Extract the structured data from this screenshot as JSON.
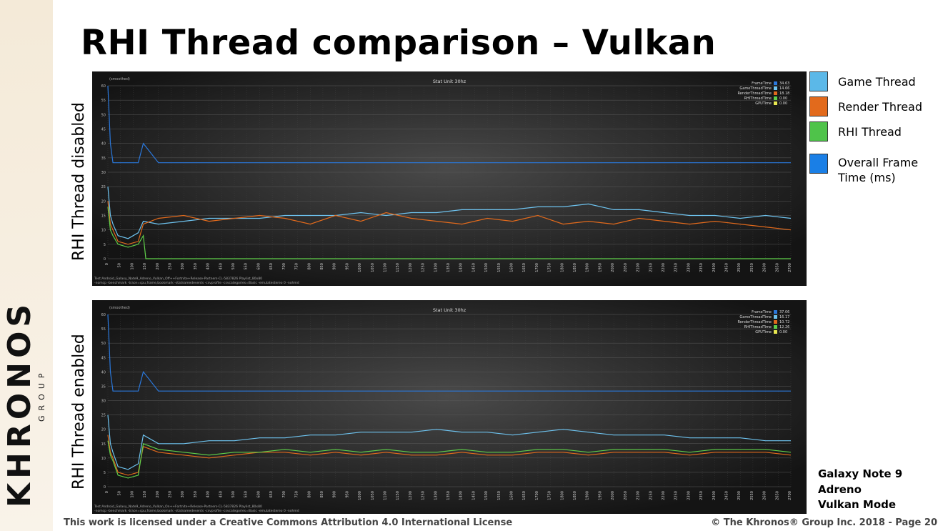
{
  "slide": {
    "title": "RHI Thread comparison – Vulkan",
    "footer_license": "This work is licensed under a Creative Commons Attribution 4.0 International License",
    "footer_copyright": "© The Khronos® Group Inc. 2018 - Page 20",
    "logo_text": "KHRONOS",
    "logo_group": "GROUP",
    "device_lines": [
      "Galaxy Note 9",
      "Adreno",
      "Vulkan Mode"
    ]
  },
  "legend": {
    "items": [
      {
        "label": "Game Thread",
        "color": "#5bb8e8"
      },
      {
        "label": "Render Thread",
        "color": "#e26a1c"
      },
      {
        "label": "RHI Thread",
        "color": "#4fc34a"
      },
      {
        "label": "Overall Frame Time (ms)",
        "color": "#1a7fe6"
      }
    ]
  },
  "colors": {
    "frame": "#2a78dc",
    "game": "#6ec3ef",
    "render": "#e26a1c",
    "rhi": "#5fd04a",
    "gpu": "#e8e850"
  },
  "chart_data": [
    {
      "type": "line",
      "row_label": "RHI Thread disabled",
      "title": "Stat Unit 30hz",
      "corner_label": "(smoothed)",
      "ylim": [
        0,
        60
      ],
      "yticks": [
        0,
        5,
        10,
        15,
        20,
        25,
        30,
        35,
        40,
        45,
        50,
        55,
        60
      ],
      "xlim": [
        0,
        2700
      ],
      "xticks": [
        0,
        50,
        100,
        150,
        200,
        250,
        300,
        350,
        400,
        450,
        500,
        550,
        600,
        650,
        700,
        750,
        800,
        850,
        900,
        950,
        1000,
        1050,
        1100,
        1150,
        1200,
        1250,
        1300,
        1350,
        1400,
        1450,
        1500,
        1550,
        1600,
        1650,
        1700,
        1750,
        1800,
        1850,
        1900,
        1950,
        2000,
        2050,
        2100,
        2150,
        2200,
        2250,
        2300,
        2350,
        2400,
        2450,
        2500,
        2550,
        2600,
        2650,
        2700
      ],
      "grid": true,
      "legend_placement": "top-right",
      "legend": [
        {
          "name": "FrameTime",
          "value": "34.63"
        },
        {
          "name": "GameThreadTime",
          "value": "14.66"
        },
        {
          "name": "RenderThreadTime",
          "value": "18.18"
        },
        {
          "name": "RHIThreadTime",
          "value": "0.00"
        },
        {
          "name": "GPUTime",
          "value": "0.00"
        }
      ],
      "series": [
        {
          "name": "FrameTime",
          "x": [
            0,
            10,
            20,
            40,
            80,
            120,
            140,
            200,
            300,
            400,
            500,
            600,
            700,
            800,
            900,
            1000,
            1100,
            1200,
            1300,
            1400,
            1500,
            1600,
            1700,
            1800,
            1900,
            2000,
            2100,
            2200,
            2300,
            2400,
            2500,
            2600,
            2700
          ],
          "values": [
            60,
            40,
            33.3,
            33.3,
            33.3,
            33.3,
            40,
            33.3,
            33.3,
            33.3,
            33.3,
            33.3,
            33.3,
            33.3,
            33.3,
            33.3,
            33.3,
            33.3,
            33.3,
            33.3,
            33.3,
            33.3,
            33.3,
            33.3,
            33.3,
            33.3,
            33.3,
            33.3,
            33.3,
            33.3,
            33.3,
            33.3,
            33.3
          ]
        },
        {
          "name": "GameThreadTime",
          "x": [
            0,
            10,
            20,
            40,
            80,
            120,
            140,
            200,
            300,
            400,
            500,
            600,
            700,
            800,
            900,
            1000,
            1100,
            1200,
            1300,
            1400,
            1500,
            1600,
            1700,
            1800,
            1900,
            2000,
            2100,
            2200,
            2300,
            2400,
            2500,
            2600,
            2700
          ],
          "values": [
            25,
            15,
            12,
            8,
            7,
            9,
            13,
            12,
            13,
            14,
            14,
            14,
            15,
            15,
            15,
            16,
            15,
            16,
            16,
            17,
            17,
            17,
            18,
            18,
            19,
            17,
            17,
            16,
            15,
            15,
            14,
            15,
            14
          ]
        },
        {
          "name": "RenderThreadTime",
          "x": [
            0,
            10,
            20,
            40,
            80,
            120,
            140,
            200,
            300,
            400,
            500,
            600,
            700,
            800,
            900,
            1000,
            1100,
            1200,
            1300,
            1400,
            1500,
            1600,
            1700,
            1800,
            1900,
            2000,
            2100,
            2200,
            2300,
            2400,
            2500,
            2600,
            2700
          ],
          "values": [
            20,
            12,
            10,
            6,
            5,
            6,
            12,
            14,
            15,
            13,
            14,
            15,
            14,
            12,
            15,
            13,
            16,
            14,
            13,
            12,
            14,
            13,
            15,
            12,
            13,
            12,
            14,
            13,
            12,
            13,
            12,
            11,
            10
          ]
        },
        {
          "name": "RHIThreadTime",
          "x": [
            0,
            10,
            20,
            40,
            80,
            120,
            140,
            150,
            200,
            300,
            400,
            500,
            600,
            700,
            800,
            900,
            1000,
            1100,
            1200,
            1300,
            1400,
            1500,
            1600,
            1700,
            1800,
            1900,
            2000,
            2100,
            2200,
            2300,
            2400,
            2500,
            2600,
            2700
          ],
          "values": [
            18,
            10,
            8,
            5,
            4,
            5,
            8,
            0,
            0,
            0,
            0,
            0,
            0,
            0,
            0,
            0,
            0,
            0,
            0,
            0,
            0,
            0,
            0,
            0,
            0,
            0,
            0,
            0,
            0,
            0,
            0,
            0,
            0,
            0
          ]
        }
      ],
      "footer_lines": [
        "Test:Android_Galaxy_Note9_Adreno_Vulkan_Off++Fortnite+Release-Partners-CL-5837826 Playlist_80x80",
        "-nomcp -benchmark -trace=cpu,frame,bookmark -statnamedevents -csvprofile -csvcategories=Basic -emulatestereo 0 -nohmd"
      ]
    },
    {
      "type": "line",
      "row_label": "RHI Thread enabled",
      "title": "Stat Unit 30hz",
      "corner_label": "(smoothed)",
      "ylim": [
        0,
        60
      ],
      "yticks": [
        0,
        5,
        10,
        15,
        20,
        25,
        30,
        35,
        40,
        45,
        50,
        55,
        60
      ],
      "xlim": [
        0,
        2700
      ],
      "xticks": [
        0,
        50,
        100,
        150,
        200,
        250,
        300,
        350,
        400,
        450,
        500,
        550,
        600,
        650,
        700,
        750,
        800,
        850,
        900,
        950,
        1000,
        1050,
        1100,
        1150,
        1200,
        1250,
        1300,
        1350,
        1400,
        1450,
        1500,
        1550,
        1600,
        1650,
        1700,
        1750,
        1800,
        1850,
        1900,
        1950,
        2000,
        2050,
        2100,
        2150,
        2200,
        2250,
        2300,
        2350,
        2400,
        2450,
        2500,
        2550,
        2600,
        2650,
        2700
      ],
      "grid": true,
      "legend_placement": "top-right",
      "legend": [
        {
          "name": "FrameTime",
          "value": "37.06"
        },
        {
          "name": "GameThreadTime",
          "value": "16.17"
        },
        {
          "name": "RenderThreadTime",
          "value": "10.72"
        },
        {
          "name": "RHIThreadTime",
          "value": "12.26"
        },
        {
          "name": "GPUTime",
          "value": "0.00"
        }
      ],
      "series": [
        {
          "name": "FrameTime",
          "x": [
            0,
            10,
            20,
            40,
            80,
            120,
            140,
            200,
            300,
            400,
            500,
            600,
            700,
            800,
            900,
            1000,
            1100,
            1200,
            1300,
            1400,
            1500,
            1600,
            1700,
            1800,
            1900,
            2000,
            2100,
            2200,
            2300,
            2400,
            2500,
            2600,
            2700
          ],
          "values": [
            60,
            40,
            33.3,
            33.3,
            33.3,
            33.3,
            40,
            33.3,
            33.3,
            33.3,
            33.3,
            33.3,
            33.3,
            33.3,
            33.3,
            33.3,
            33.3,
            33.3,
            33.3,
            33.3,
            33.3,
            33.3,
            33.3,
            33.3,
            33.3,
            33.3,
            33.3,
            33.3,
            33.3,
            33.3,
            33.3,
            33.3,
            33.3
          ]
        },
        {
          "name": "GameThreadTime",
          "x": [
            0,
            10,
            20,
            40,
            80,
            120,
            140,
            200,
            300,
            400,
            500,
            600,
            700,
            800,
            900,
            1000,
            1100,
            1200,
            1300,
            1400,
            1500,
            1600,
            1700,
            1800,
            1900,
            2000,
            2100,
            2200,
            2300,
            2400,
            2500,
            2600,
            2700
          ],
          "values": [
            25,
            15,
            12,
            7,
            6,
            8,
            18,
            15,
            15,
            16,
            16,
            17,
            17,
            18,
            18,
            19,
            19,
            19,
            20,
            19,
            19,
            18,
            19,
            20,
            19,
            18,
            18,
            18,
            17,
            17,
            17,
            16,
            16
          ]
        },
        {
          "name": "RenderThreadTime",
          "x": [
            0,
            10,
            20,
            40,
            80,
            120,
            140,
            200,
            300,
            400,
            500,
            600,
            700,
            800,
            900,
            1000,
            1100,
            1200,
            1300,
            1400,
            1500,
            1600,
            1700,
            1800,
            1900,
            2000,
            2100,
            2200,
            2300,
            2400,
            2500,
            2600,
            2700
          ],
          "values": [
            18,
            12,
            10,
            5,
            4,
            5,
            14,
            12,
            11,
            10,
            11,
            12,
            12,
            11,
            12,
            11,
            12,
            11,
            11,
            12,
            11,
            11,
            12,
            12,
            11,
            12,
            12,
            12,
            11,
            12,
            12,
            12,
            11
          ]
        },
        {
          "name": "RHIThreadTime",
          "x": [
            0,
            10,
            20,
            40,
            80,
            120,
            140,
            200,
            300,
            400,
            500,
            600,
            700,
            800,
            900,
            1000,
            1100,
            1200,
            1300,
            1400,
            1500,
            1600,
            1700,
            1800,
            1900,
            2000,
            2100,
            2200,
            2300,
            2400,
            2500,
            2600,
            2700
          ],
          "values": [
            16,
            11,
            9,
            4,
            3,
            4,
            15,
            13,
            12,
            11,
            12,
            12,
            13,
            12,
            13,
            12,
            13,
            12,
            12,
            13,
            12,
            12,
            13,
            13,
            12,
            13,
            13,
            13,
            12,
            13,
            13,
            13,
            12
          ]
        }
      ],
      "footer_lines": [
        "Test:Android_Galaxy_Note9_Adreno_Vulkan_On++Fortnite+Release-Partners-CL-5837826 Playlist_80x80",
        "-nomcp -benchmark -trace=cpu,frame,bookmark -statnamedevents -csvprofile -csvcategories=Basic -emulatestereo 0 -nohmd"
      ]
    }
  ]
}
